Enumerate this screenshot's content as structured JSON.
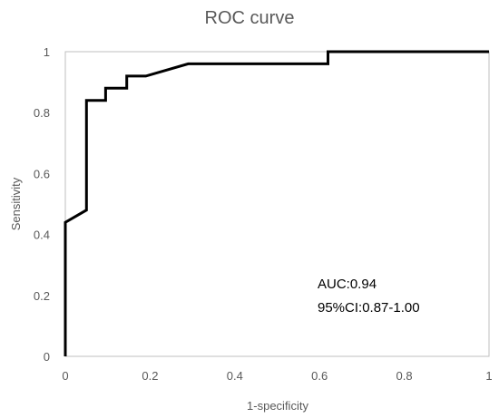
{
  "chart_data": {
    "type": "line",
    "title": "ROC curve",
    "xlabel": "1-specificity",
    "ylabel": "Sensitivity",
    "xlim": [
      0,
      1
    ],
    "ylim": [
      0,
      1
    ],
    "x_ticks": [
      "0",
      "0.2",
      "0.4",
      "0.6",
      "0.8",
      "1"
    ],
    "y_ticks": [
      "0",
      "0.2",
      "0.4",
      "0.6",
      "0.8",
      "1"
    ],
    "grid": false,
    "legend": "none",
    "series": [
      {
        "color": "#000000",
        "x": [
          0,
          0,
          0.05,
          0.05,
          0.095,
          0.095,
          0.145,
          0.145,
          0.19,
          0.29,
          0.62,
          0.62,
          1.0
        ],
        "y": [
          0,
          0.44,
          0.48,
          0.84,
          0.84,
          0.88,
          0.88,
          0.92,
          0.92,
          0.96,
          0.96,
          1.0,
          1.0
        ]
      }
    ],
    "annotations": [
      "AUC:0.94",
      "95%CI:0.87-1.00"
    ],
    "border_color": "#bfbfbf",
    "text_color": "#595959"
  }
}
